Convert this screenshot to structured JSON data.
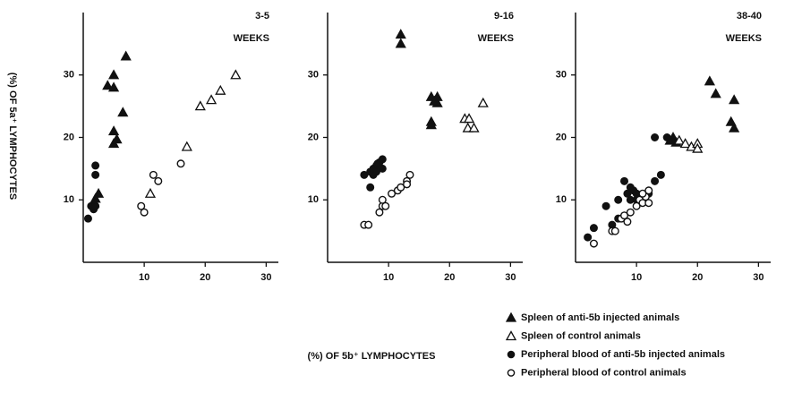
{
  "chart_data": {
    "type": "scatter",
    "ylabel": "(%) OF 5a⁺ LYMPHOCYTES",
    "xlabel": "(%) OF 5b⁺ LYMPHOCYTES",
    "xlim": [
      0,
      32
    ],
    "ylim": [
      0,
      40
    ],
    "xticks": [
      10,
      20,
      30
    ],
    "yticks": [
      10,
      20,
      30
    ],
    "series": [
      {
        "name": "Spleen of anti-5b injected animals",
        "marker": "triangle",
        "filled": true,
        "color": "#111111"
      },
      {
        "name": "Spleen of control animals",
        "marker": "triangle",
        "filled": false,
        "color": "#111111"
      },
      {
        "name": "Peripheral blood of anti-5b injected animals",
        "marker": "circle",
        "filled": true,
        "color": "#111111"
      },
      {
        "name": "Peripheral blood of control animals",
        "marker": "circle",
        "filled": false,
        "color": "#111111"
      }
    ],
    "panels": [
      {
        "title": [
          "3-5",
          "WEEKS"
        ],
        "points": [
          {
            "x": [
              7,
              4,
              5,
              5,
              6.5,
              5,
              5,
              5.5,
              2.5,
              2,
              1.8
            ],
            "y": [
              33,
              28.3,
              28,
              30,
              24,
              21,
              19,
              19.7,
              11,
              10.2,
              9.5
            ]
          },
          {
            "x": [
              11,
              17,
              19.2,
              21,
              22.5,
              25
            ],
            "y": [
              11,
              18.5,
              25,
              26,
              27.5,
              30
            ]
          },
          {
            "x": [
              2,
              2,
              1.3,
              1.7,
              2,
              0.8
            ],
            "y": [
              15.5,
              14,
              9,
              8.5,
              9,
              7
            ]
          },
          {
            "x": [
              9.5,
              10,
              11.5,
              12.3,
              16
            ],
            "y": [
              9,
              8,
              14,
              13,
              15.8
            ]
          }
        ]
      },
      {
        "title": [
          "9-16",
          "WEEKS"
        ],
        "points": [
          {
            "x": [
              12,
              12,
              17,
              18,
              18,
              17.5,
              17,
              17
            ],
            "y": [
              36.5,
              35,
              26.5,
              26.5,
              25.5,
              25.8,
              22.5,
              22
            ]
          },
          {
            "x": [
              22.5,
              23.2,
              23,
              24,
              25.5
            ],
            "y": [
              23,
              23,
              21.5,
              21.5,
              25.5
            ]
          },
          {
            "x": [
              6,
              7,
              7.5,
              8,
              8.5,
              9,
              9,
              7.5,
              8,
              7,
              8.2
            ],
            "y": [
              14,
              14.5,
              15,
              15.5,
              16,
              16.5,
              15,
              14,
              14.5,
              12,
              15.8
            ]
          },
          {
            "x": [
              6,
              6.7,
              8.5,
              9,
              9,
              9.5,
              10.5,
              11.5,
              12,
              13,
              13.5,
              13
            ],
            "y": [
              6,
              6,
              8,
              9,
              10,
              9,
              11,
              11.5,
              12,
              13,
              14,
              12.5
            ]
          }
        ]
      },
      {
        "title": [
          "38-40",
          "WEEKS"
        ],
        "points": [
          {
            "x": [
              22,
              23,
              26,
              25.5,
              26,
              16,
              15.5,
              16.5
            ],
            "y": [
              29,
              27,
              26,
              22.5,
              21.5,
              20,
              19.5,
              19.2
            ]
          },
          {
            "x": [
              17,
              18,
              19,
              20,
              20
            ],
            "y": [
              19.5,
              19,
              18.5,
              19,
              18.2
            ]
          },
          {
            "x": [
              2,
              3,
              5,
              6,
              7,
              7,
              8,
              9,
              10,
              10,
              11,
              12,
              13,
              13,
              14,
              15,
              8.5,
              9.5,
              9
            ],
            "y": [
              4,
              5.5,
              9,
              6,
              7,
              10,
              13,
              12,
              11,
              10,
              10.5,
              11,
              13,
              20,
              14,
              20,
              11,
              11.5,
              10
            ]
          },
          {
            "x": [
              3,
              6,
              6.5,
              7.5,
              8,
              8.5,
              9,
              10,
              10.5,
              11,
              11.5,
              12,
              11,
              12
            ],
            "y": [
              3,
              5,
              5,
              7,
              7.5,
              6.5,
              8,
              9,
              10,
              9.5,
              10.5,
              11.5,
              11,
              9.5
            ]
          }
        ]
      }
    ]
  }
}
